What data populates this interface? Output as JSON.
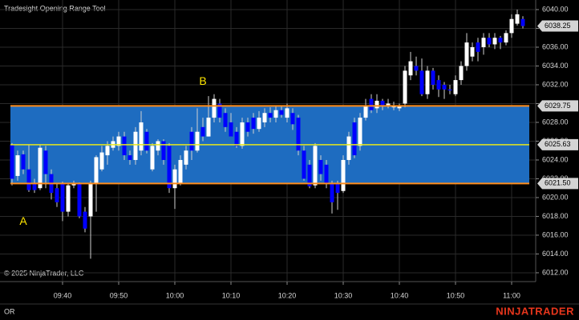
{
  "chart_data": {
    "type": "candlestick",
    "title": "Tradesight Opening Range Tool",
    "copyright": "© 2025 NinjaTrader, LLC",
    "footer_label": "OR",
    "brand": "NINJATRADER",
    "annotations": [
      {
        "text": "A",
        "index": 2,
        "price": 6017.4
      },
      {
        "text": "B",
        "index": 34,
        "price": 6032.3
      }
    ],
    "up_color": "#ffffff",
    "down_color": "#0000ff",
    "wick_color": "#d0d0d0",
    "range_fill": "#1e6cc0",
    "range_edge_color": "#ff8c1a",
    "range_mid_color": "#e8e81a",
    "annotation_color": "#ffe600",
    "grid": true,
    "ylim": [
      6011.06,
      6041.02
    ],
    "yticks": [
      {
        "value": 6012,
        "label": "6012.00"
      },
      {
        "value": 6014,
        "label": "6014.00"
      },
      {
        "value": 6016,
        "label": "6016.00"
      },
      {
        "value": 6018,
        "label": "6018.00"
      },
      {
        "value": 6020,
        "label": "6020.00"
      },
      {
        "value": 6022,
        "label": "6022.00"
      },
      {
        "value": 6024,
        "label": "6024.00"
      },
      {
        "value": 6026,
        "label": "6026.00"
      },
      {
        "value": 6028,
        "label": "6028.00"
      },
      {
        "value": 6030,
        "label": "6030.00"
      },
      {
        "value": 6032,
        "label": "6032.00"
      },
      {
        "value": 6034,
        "label": "6034.00"
      },
      {
        "value": 6036,
        "label": "6036.00"
      },
      {
        "value": 6038,
        "label": "6038.00"
      },
      {
        "value": 6040,
        "label": "6040.00"
      }
    ],
    "opening_range": {
      "high": 6029.75,
      "middle": 6025.63,
      "low": {
        "value": 6021.5,
        "label": "6021.50"
      }
    },
    "last_price": 6038.25,
    "categories": [
      null,
      null,
      null,
      null,
      null,
      null,
      null,
      null,
      null,
      "09:40",
      null,
      null,
      null,
      null,
      null,
      null,
      null,
      null,
      null,
      "09:50",
      null,
      null,
      null,
      null,
      null,
      null,
      null,
      null,
      null,
      "10:00",
      null,
      null,
      null,
      null,
      null,
      null,
      null,
      null,
      null,
      "10:10",
      null,
      null,
      null,
      null,
      null,
      null,
      null,
      null,
      null,
      "10:20",
      null,
      null,
      null,
      null,
      null,
      null,
      null,
      null,
      null,
      "10:30",
      null,
      null,
      null,
      null,
      null,
      null,
      null,
      null,
      null,
      "10:40",
      null,
      null,
      null,
      null,
      null,
      null,
      null,
      null,
      null,
      "10:50",
      null,
      null,
      null,
      null,
      null,
      null,
      null,
      null,
      null,
      "11:00",
      null,
      null
    ],
    "open": [
      6025.6,
      6022.3,
      6024.6,
      6023,
      6021.5,
      6021,
      6025,
      6022.5,
      6021,
      6021.5,
      6018.5,
      6021.3,
      6021.5,
      6018.5,
      6018,
      6021.5,
      6023,
      6024.5,
      6025.3,
      6025.5,
      6026.5,
      6024.5,
      6024,
      6025,
      6027,
      6023,
      6025,
      6026,
      6025.5,
      6021,
      6021.5,
      6023.5,
      6027,
      6025,
      6027.5,
      6026.5,
      6028.5,
      6030,
      6029,
      6028,
      6027,
      6025.5,
      6028,
      6028.5,
      6027.3,
      6028,
      6029,
      6028.5,
      6029.3,
      6028.5,
      6029,
      6028.5,
      6025,
      6023.5,
      6021.3,
      6024,
      6023.5,
      6021.5,
      6021.5,
      6020.7,
      6024,
      6028,
      6025.5,
      6028.5,
      6030.5,
      6029.5,
      6030.3,
      6029.7,
      6029.6,
      6029.5,
      6030,
      6033,
      6034,
      6033.5,
      6031,
      6033.5,
      6032.5,
      6032,
      6031.5,
      6031,
      6032.5,
      6034,
      6035,
      6036.5,
      6036,
      6037,
      6036.3,
      6037,
      6036.5,
      6037.5,
      6038.5,
      6039
    ],
    "high": [
      6025.8,
      6025,
      6025,
      6025.6,
      6022,
      6025.6,
      6025.5,
      6023,
      6021.5,
      6021.7,
      6021.5,
      6021.8,
      6021.6,
      6019,
      6021.8,
      6024.5,
      6025.5,
      6026,
      6026.5,
      6027,
      6027,
      6025,
      6027.5,
      6029.2,
      6027.3,
      6025.8,
      6026.2,
      6026.2,
      6025.8,
      6023.5,
      6024.5,
      6025.5,
      6027.5,
      6029.5,
      6028.5,
      6030.8,
      6031,
      6030.5,
      6029.5,
      6029,
      6027.5,
      6028.5,
      6028.5,
      6029,
      6029.2,
      6029.5,
      6029.6,
      6029.7,
      6029.8,
      6030,
      6029.5,
      6028.8,
      6025.5,
      6024,
      6025.8,
      6024.5,
      6024,
      6021.8,
      6021.8,
      6024.5,
      6027,
      6028.5,
      6029,
      6030.5,
      6031,
      6031,
      6030.5,
      6030.5,
      6030.2,
      6030,
      6034,
      6035.5,
      6035,
      6034.8,
      6034,
      6033.8,
      6033,
      6032.3,
      6032,
      6033,
      6034.5,
      6037.5,
      6036.5,
      6037,
      6037.5,
      6037.5,
      6037.5,
      6037.2,
      6037.8,
      6039.5,
      6040,
      6039.3
    ],
    "low": [
      6021.3,
      6021.8,
      6022.5,
      6020.6,
      6020.5,
      6020.8,
      6021,
      6019.8,
      6019,
      6017.5,
      6018,
      6021,
      6017.8,
      6016.3,
      6013.5,
      6018.5,
      6022.8,
      6023.5,
      6025,
      6025,
      6024,
      6023.5,
      6023.5,
      6024.5,
      6024.7,
      6022.8,
      6024.5,
      6023.5,
      6020.5,
      6018.8,
      6021.3,
      6023,
      6024,
      6024.8,
      6026,
      6026.5,
      6028,
      6028,
      6027,
      6026.5,
      6025.3,
      6025.2,
      6026.5,
      6026.8,
      6027,
      6027.5,
      6028,
      6028,
      6028.5,
      6028,
      6027.2,
      6024.5,
      6021.8,
      6021,
      6021,
      6021.8,
      6021,
      6018.3,
      6018.7,
      6020.5,
      6023.5,
      6024.2,
      6025,
      6028.2,
      6029,
      6029,
      6029.3,
      6029.5,
      6029.3,
      6029.2,
      6029.6,
      6032.5,
      6033,
      6030.8,
      6030.5,
      6031.5,
      6030.7,
      6030.5,
      6031,
      6030.8,
      6032,
      6033.5,
      6034.5,
      6034.5,
      6035.2,
      6036,
      6035.8,
      6035.8,
      6036.2,
      6037,
      6038.3,
      6038
    ],
    "close": [
      6022,
      6024.5,
      6023,
      6020.8,
      6020.8,
      6025.3,
      6022.5,
      6020.5,
      6019.5,
      6018.5,
      6021.3,
      6021.5,
      6018,
      6016.7,
      6021.5,
      6024.3,
      6024.8,
      6025.5,
      6026,
      6026.5,
      6024.5,
      6024,
      6027,
      6028,
      6025,
      6025.5,
      6026,
      6024,
      6021,
      6023,
      6024,
      6025,
      6025,
      6027,
      6026.5,
      6028.5,
      6030.5,
      6028.5,
      6027.5,
      6026.5,
      6025.5,
      6028,
      6027,
      6027.3,
      6028.5,
      6029,
      6028.5,
      6029.3,
      6028.8,
      6029.5,
      6027.8,
      6025,
      6022,
      6021.2,
      6025.5,
      6022.5,
      6021.5,
      6019.5,
      6020.5,
      6024,
      6026.5,
      6024.5,
      6028.5,
      6029.8,
      6029.3,
      6030.3,
      6029.8,
      6030,
      6029.8,
      6029.8,
      6033.5,
      6034.5,
      6033.5,
      6031,
      6033.5,
      6032,
      6031.5,
      6031.5,
      6031.4,
      6032.5,
      6034,
      6036.5,
      6036,
      6035.5,
      6037,
      6036.3,
      6037,
      6036.5,
      6037.5,
      6039,
      6039.5,
      6038.25
    ]
  }
}
